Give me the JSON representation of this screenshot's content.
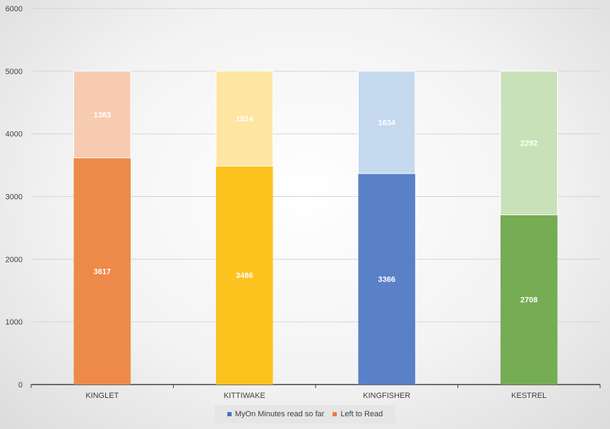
{
  "chart_data": {
    "type": "bar",
    "stacked": true,
    "categories": [
      "KINGLET",
      "KITTIWAKE",
      "KINGFISHER",
      "KESTREL"
    ],
    "series": [
      {
        "name": "MyOn Minutes read so far",
        "values": [
          3617,
          3486,
          3366,
          2708
        ]
      },
      {
        "name": "Left to Read",
        "values": [
          1383,
          1514,
          1634,
          2292
        ]
      }
    ],
    "bar_colors": {
      "read": [
        "#ED8A4A",
        "#FCC31E",
        "#5A80C8",
        "#75AC54"
      ],
      "left": [
        "#F6CBAF",
        "#FEE5A1",
        "#C5D9EF",
        "#C9E1B8"
      ]
    },
    "legend_colors": [
      "#4472C4",
      "#ED7D31"
    ],
    "y_ticks": [
      0,
      1000,
      2000,
      3000,
      4000,
      5000,
      6000
    ],
    "ylim": [
      0,
      6000
    ],
    "grid": true,
    "legend_position": "bottom"
  }
}
